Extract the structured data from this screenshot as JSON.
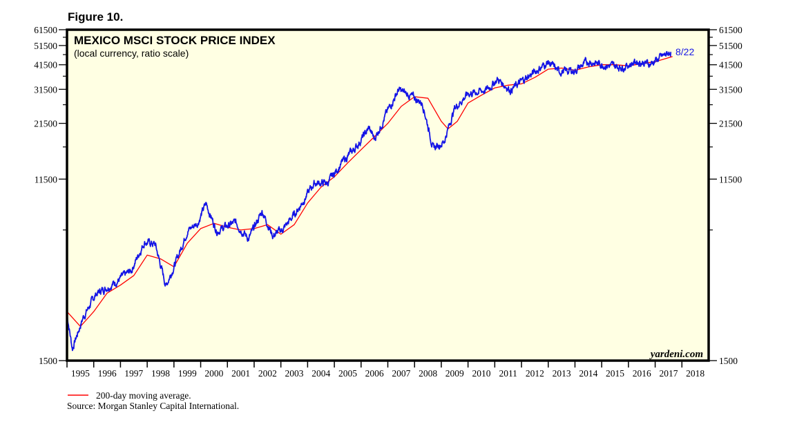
{
  "figure_label": "Figure 10.",
  "chart_data": {
    "type": "line",
    "title": "MEXICO MSCI STOCK PRICE INDEX",
    "subtitle": "(local currency, ratio scale)",
    "xlabel": "",
    "ylabel": "",
    "yscale": "log",
    "ylim": [
      1500,
      61500
    ],
    "xlim": [
      1995,
      2019
    ],
    "y_tick_labels": [
      61500,
      51500,
      41500,
      31500,
      21500,
      11500,
      1500
    ],
    "y_minor_ticks": [
      56500,
      46500,
      36500,
      26500,
      16500,
      6500
    ],
    "x_tick_labels": [
      "1995",
      "1996",
      "1997",
      "1998",
      "1999",
      "2000",
      "2001",
      "2002",
      "2003",
      "2004",
      "2005",
      "2006",
      "2007",
      "2008",
      "2009",
      "2010",
      "2011",
      "2012",
      "2013",
      "2014",
      "2015",
      "2016",
      "2017",
      "2018"
    ],
    "end_annotation": "8/22",
    "watermark": "yardeni.com",
    "series": [
      {
        "name": "Mexico MSCI stock price index",
        "color": "#1414e6",
        "x": [
          1995.0,
          1995.2,
          1995.6,
          1996.1,
          1996.75,
          1997.4,
          1997.9,
          1998.3,
          1998.7,
          1999.1,
          1999.5,
          1999.9,
          2000.2,
          2000.6,
          2001.3,
          2001.8,
          2002.3,
          2002.7,
          2003.1,
          2003.6,
          2004.25,
          2004.75,
          2005.3,
          2005.8,
          2006.3,
          2006.5,
          2007.0,
          2007.4,
          2007.9,
          2008.3,
          2008.7,
          2009.1,
          2009.5,
          2010.0,
          2010.7,
          2011.1,
          2011.6,
          2012.1,
          2013.0,
          2013.4,
          2014.0,
          2014.5,
          2015.2,
          2015.8,
          2016.3,
          2016.8,
          2017.6
        ],
        "y": [
          2530,
          1716,
          2430,
          3190,
          3570,
          4120,
          5690,
          5530,
          3480,
          4630,
          6420,
          7080,
          8740,
          6420,
          7080,
          5880,
          8040,
          6080,
          6600,
          8040,
          11000,
          11000,
          13900,
          16400,
          20400,
          18000,
          24800,
          31300,
          29000,
          27000,
          16200,
          17500,
          25500,
          30000,
          31300,
          35200,
          31300,
          35200,
          42700,
          38400,
          38900,
          43100,
          41200,
          40500,
          43100,
          41900,
          48100
        ]
      },
      {
        "name": "200-day moving average.",
        "color": "#ff0000",
        "x": [
          1995.0,
          1995.5,
          1996.0,
          1996.5,
          1997.0,
          1997.5,
          1998.0,
          1998.5,
          1999.0,
          1999.5,
          2000.0,
          2000.5,
          2001.0,
          2001.5,
          2002.0,
          2002.5,
          2003.0,
          2003.5,
          2004.0,
          2004.5,
          2005.0,
          2005.5,
          2006.0,
          2006.5,
          2007.0,
          2007.5,
          2008.0,
          2008.5,
          2009.0,
          2009.25,
          2009.6,
          2010.0,
          2010.5,
          2011.0,
          2011.5,
          2012.0,
          2012.5,
          2013.0,
          2013.5,
          2014.0,
          2014.5,
          2015.0,
          2015.5,
          2016.0,
          2016.5,
          2017.0,
          2017.65
        ],
        "y": [
          2600,
          2200,
          2600,
          3200,
          3500,
          3900,
          4900,
          4700,
          4300,
          5600,
          6600,
          7000,
          6700,
          6500,
          6600,
          6900,
          6200,
          6900,
          8800,
          10500,
          11800,
          13800,
          16000,
          18500,
          21500,
          26000,
          29000,
          28500,
          22000,
          20200,
          22000,
          27000,
          29500,
          32000,
          33000,
          33500,
          36000,
          39500,
          40000,
          39000,
          40500,
          41500,
          41500,
          41000,
          42000,
          43000,
          45500
        ]
      }
    ],
    "legend": {
      "entries": [
        "200-day moving average."
      ],
      "placement": "bottom-left"
    },
    "source": "Source: Morgan Stanley Capital International."
  }
}
